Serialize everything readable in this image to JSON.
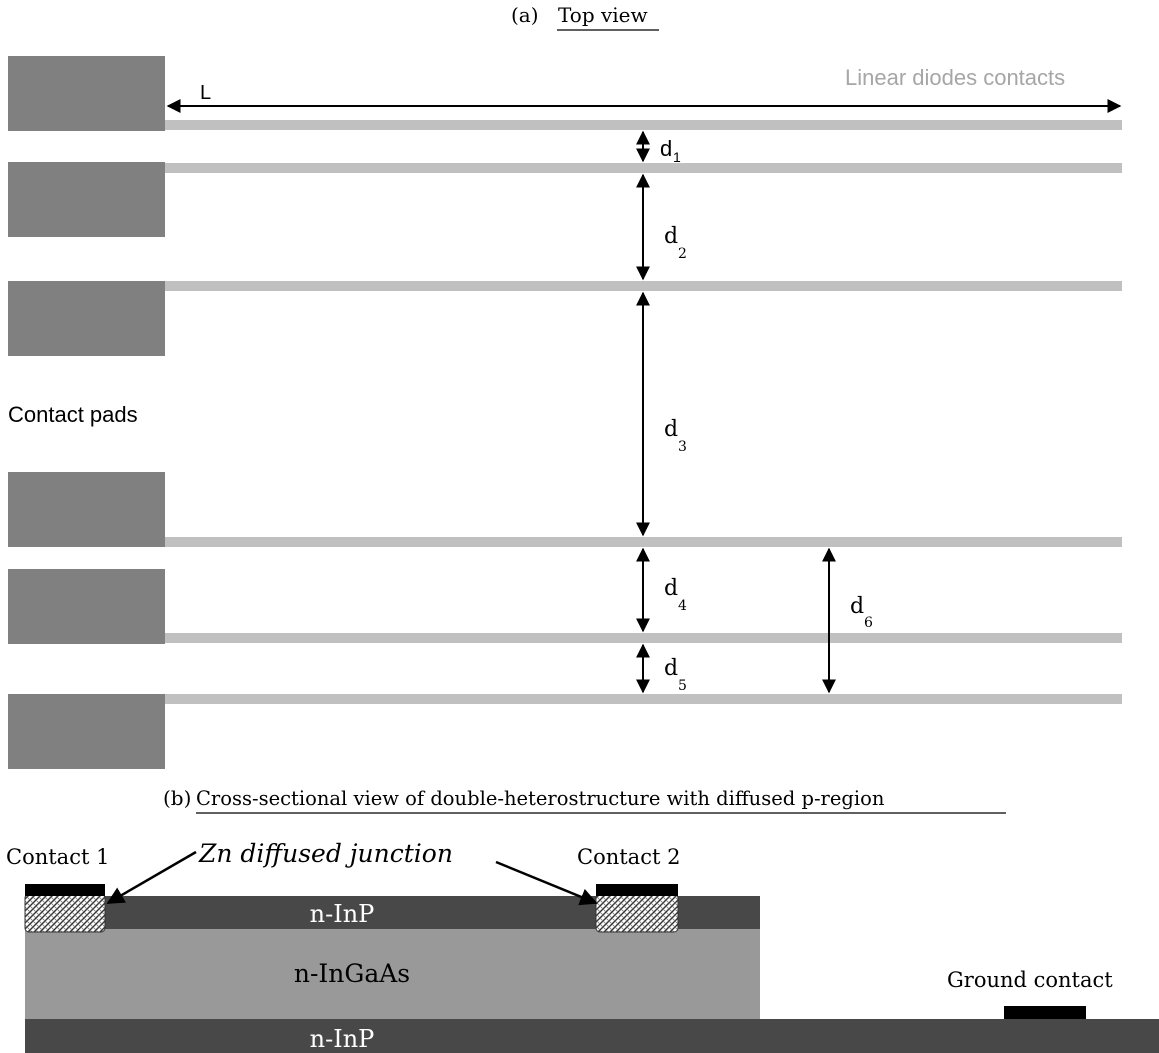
{
  "top_view": {
    "caption_prefix": "(a)",
    "caption_text": "Top view",
    "label_linear": "Linear diodes contacts",
    "label_pads": "Contact pads",
    "label_length": "L",
    "dims": [
      {
        "base": "d",
        "sub": "1"
      },
      {
        "base": "d",
        "sub": "2"
      },
      {
        "base": "d",
        "sub": "3"
      },
      {
        "base": "d",
        "sub": "4"
      },
      {
        "base": "d",
        "sub": "5"
      },
      {
        "base": "d",
        "sub": "6"
      }
    ],
    "colors": {
      "pad": "#808080",
      "strip": "#c0c0c0",
      "text_gray": "#a6a6a6"
    }
  },
  "cross_section": {
    "caption_prefix": "(b)",
    "caption_text": "Cross-sectional view of double-heterostructure with diffused p-region",
    "contact1": "Contact 1",
    "contact2": "Contact 2",
    "zn_label": "Zn diffused junction",
    "ground": "Ground contact",
    "layer_top": "n-InP",
    "layer_mid": "n-InGaAs",
    "layer_bottom": "n-InP",
    "colors": {
      "dark_layer": "#484848",
      "mid_layer": "#999999",
      "contact": "#000000"
    }
  }
}
